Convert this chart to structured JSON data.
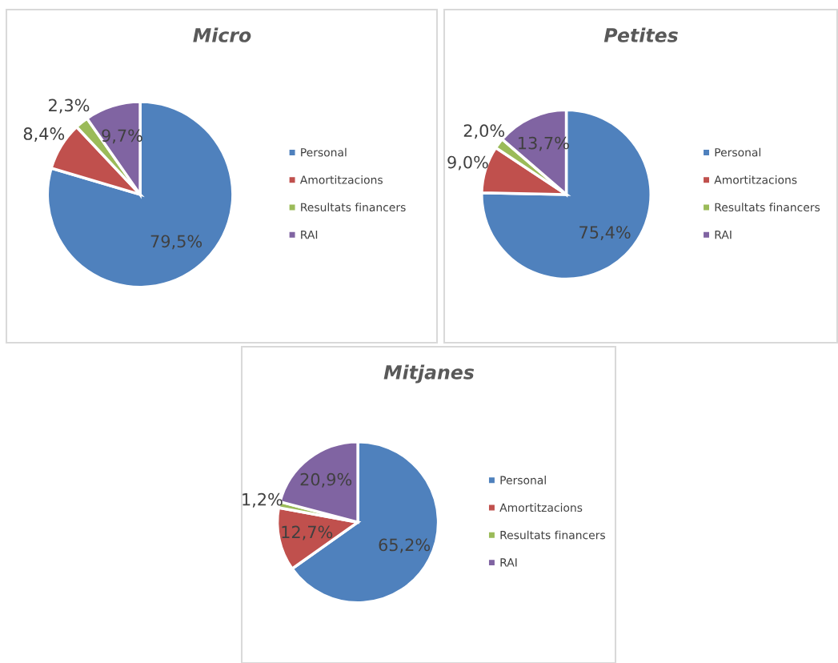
{
  "chart_data": [
    {
      "type": "pie",
      "title": "Micro",
      "categories": [
        "Personal",
        "Amortitzacions",
        "Resultats financers",
        "RAI"
      ],
      "values": [
        79.5,
        8.4,
        2.3,
        9.7
      ],
      "colors": [
        "#4f81bd",
        "#c0504d",
        "#9bbb59",
        "#8064a2"
      ],
      "value_labels": [
        "79,5%",
        "8,4%",
        "2,3%",
        "9,7%"
      ],
      "legend": "right"
    },
    {
      "type": "pie",
      "title": "Petites",
      "categories": [
        "Personal",
        "Amortitzacions",
        "Resultats financers",
        "RAI"
      ],
      "values": [
        75.4,
        9.0,
        2.0,
        13.7
      ],
      "colors": [
        "#4f81bd",
        "#c0504d",
        "#9bbb59",
        "#8064a2"
      ],
      "value_labels": [
        "75,4%",
        "9,0%",
        "2,0%",
        "13,7%"
      ],
      "legend": "right"
    },
    {
      "type": "pie",
      "title": "Mitjanes",
      "categories": [
        "Personal",
        "Amortitzacions",
        "Resultats financers",
        "RAI"
      ],
      "values": [
        65.2,
        12.7,
        1.2,
        20.9
      ],
      "colors": [
        "#4f81bd",
        "#c0504d",
        "#9bbb59",
        "#8064a2"
      ],
      "value_labels": [
        "65,2%",
        "12,7%",
        "1,2%",
        "20,9%"
      ],
      "legend": "right"
    }
  ]
}
